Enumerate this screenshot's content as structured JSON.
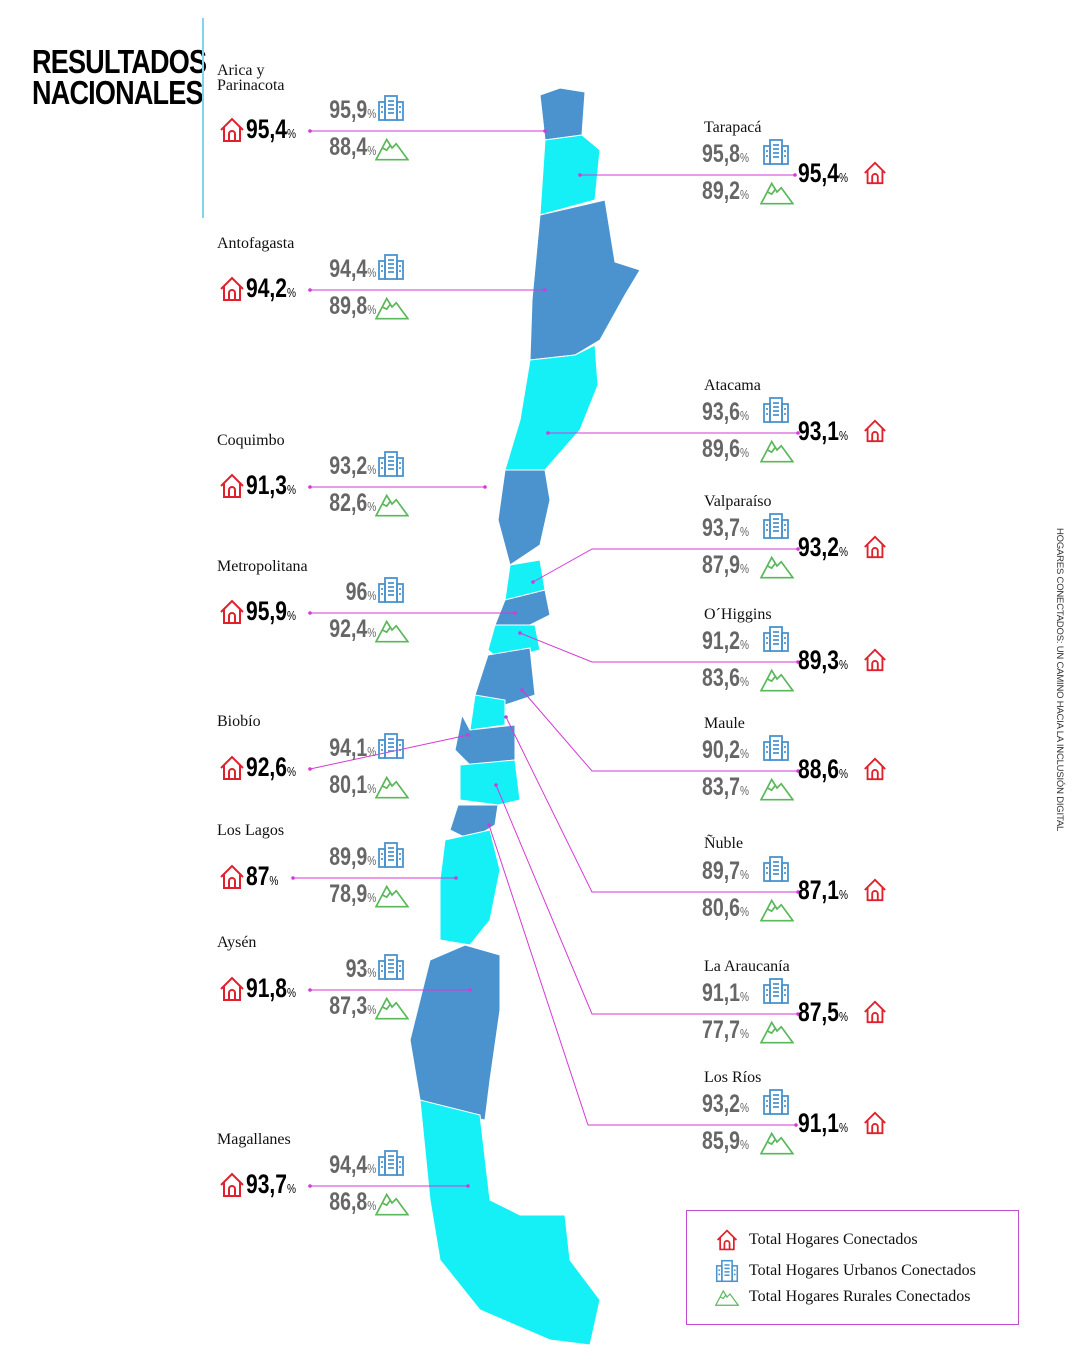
{
  "title_line1": "RESULTADOS",
  "title_line2": "NACIONALES",
  "side_text": "HOGARES CONECTADOS: UN CAMINO HACIA LA INCLUSIÓN DIGITAL",
  "colors": {
    "dark_region": "#4a93cf",
    "light_region": "#14f0f5",
    "leader_line": "#d53ad6",
    "house_icon": "#e0202c",
    "building_icon": "#4a93cf",
    "mountain_icon": "#5ab85a"
  },
  "percent_sign": "%",
  "regions": [
    {
      "name": "Arica y\nParinacota",
      "total": "95,4",
      "urban": "95,9",
      "rural": "88,4",
      "fill": "dark"
    },
    {
      "name": "Tarapacá",
      "total": "95,4",
      "urban": "95,8",
      "rural": "89,2",
      "fill": "light"
    },
    {
      "name": "Antofagasta",
      "total": "94,2",
      "urban": "94,4",
      "rural": "89,8",
      "fill": "dark"
    },
    {
      "name": "Atacama",
      "total": "93,1",
      "urban": "93,6",
      "rural": "89,6",
      "fill": "light"
    },
    {
      "name": "Coquimbo",
      "total": "91,3",
      "urban": "93,2",
      "rural": "82,6",
      "fill": "dark"
    },
    {
      "name": "Valparaíso",
      "total": "93,2",
      "urban": "93,7",
      "rural": "87,9",
      "fill": "light"
    },
    {
      "name": "Metropolitana",
      "total": "95,9",
      "urban": "96",
      "rural": "92,4",
      "fill": "dark"
    },
    {
      "name": "O´Higgins",
      "total": "89,3",
      "urban": "91,2",
      "rural": "83,6",
      "fill": "light"
    },
    {
      "name": "Maule",
      "total": "88,6",
      "urban": "90,2",
      "rural": "83,7",
      "fill": "dark"
    },
    {
      "name": "Ñuble",
      "total": "87,1",
      "urban": "89,7",
      "rural": "80,6",
      "fill": "light"
    },
    {
      "name": "Biobío",
      "total": "92,6",
      "urban": "94,1",
      "rural": "80,1",
      "fill": "dark"
    },
    {
      "name": "La Araucanía",
      "total": "87,5",
      "urban": "91,1",
      "rural": "77,7",
      "fill": "light"
    },
    {
      "name": "Los Ríos",
      "total": "91,1",
      "urban": "93,2",
      "rural": "85,9",
      "fill": "dark"
    },
    {
      "name": "Los Lagos",
      "total": "87",
      "urban": "89,9",
      "rural": "78,9",
      "fill": "light"
    },
    {
      "name": "Aysén",
      "total": "91,8",
      "urban": "93",
      "rural": "87,3",
      "fill": "dark"
    },
    {
      "name": "Magallanes",
      "total": "93,7",
      "urban": "94,4",
      "rural": "86,8",
      "fill": "light"
    }
  ],
  "legend": [
    {
      "icon": "house-icon",
      "label": "Total Hogares Conectados"
    },
    {
      "icon": "building-icon",
      "label": "Total Hogares Urbanos Conectados"
    },
    {
      "icon": "mountain-icon",
      "label": "Total Hogares Rurales Conectados"
    }
  ]
}
